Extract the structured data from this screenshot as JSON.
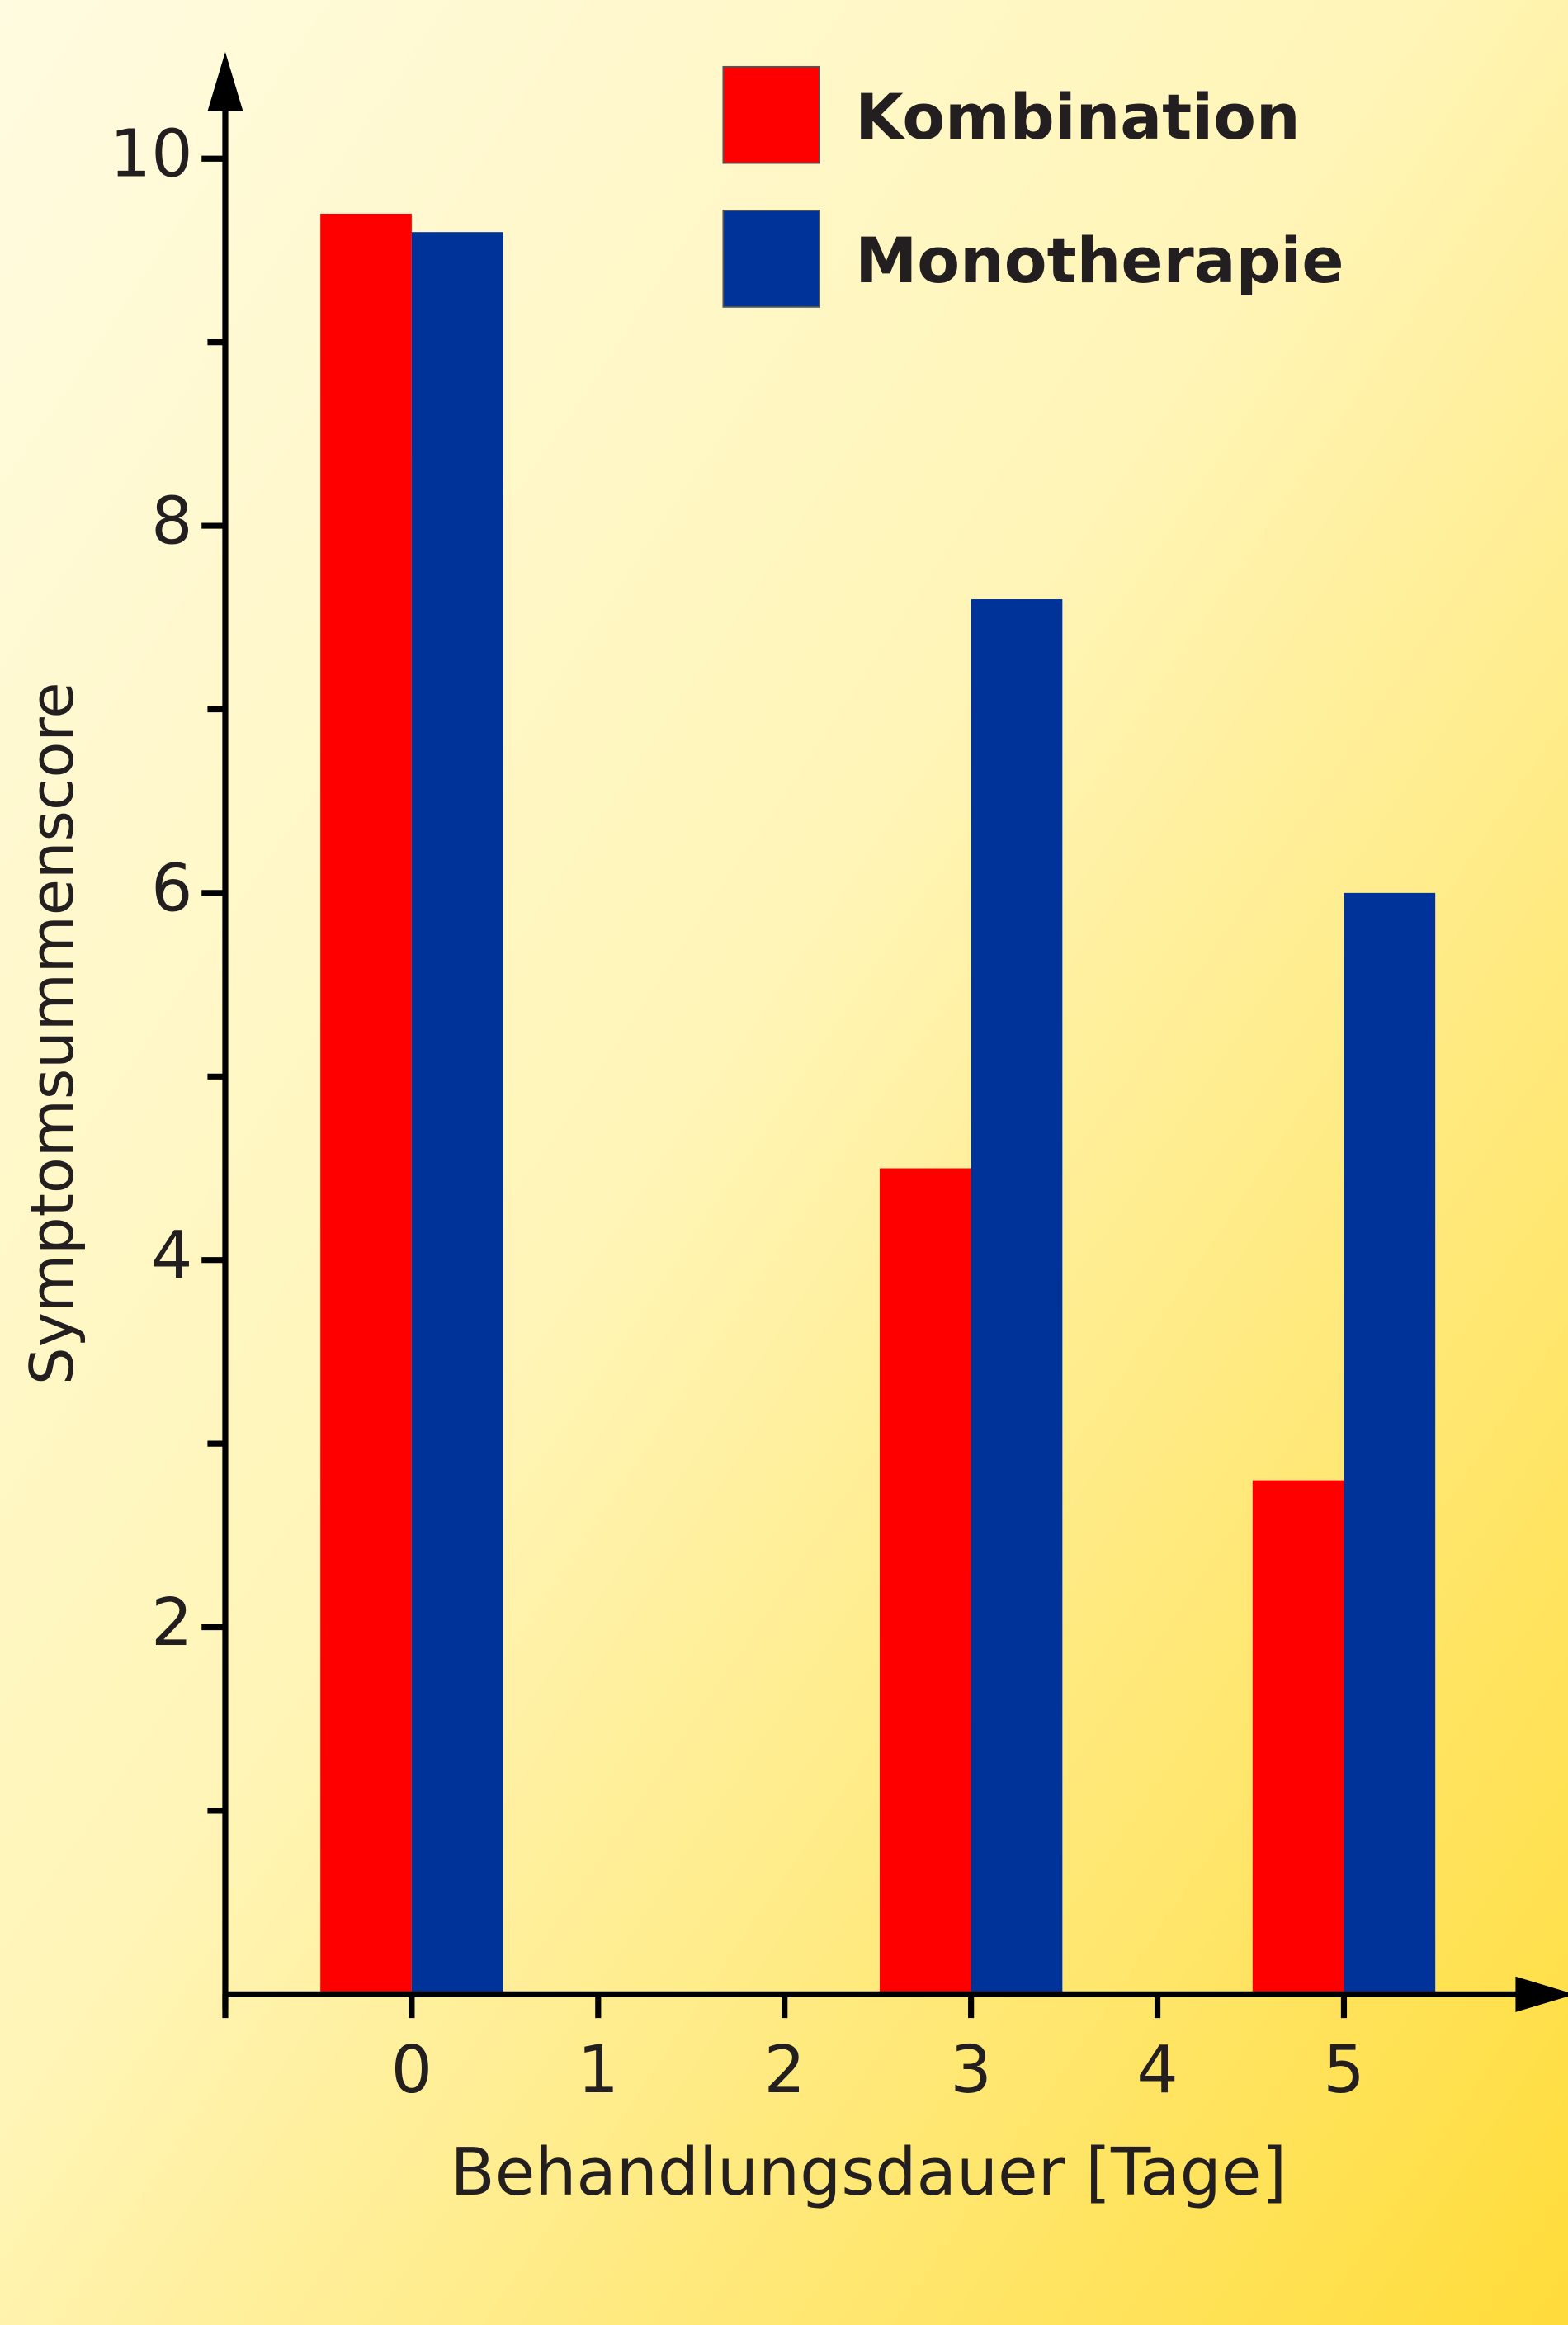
{
  "chart_data": {
    "type": "bar",
    "x": [
      0,
      3,
      5
    ],
    "series": [
      {
        "name": "Kombination",
        "color": "#ff0000",
        "values": [
          9.7,
          4.5,
          2.8
        ]
      },
      {
        "name": "Monotherapie",
        "color": "#003399",
        "values": [
          9.6,
          7.6,
          6.0
        ]
      }
    ],
    "x_label": "Behandlungsdauer [Tage]",
    "y_label": "Symptomsummenscore",
    "xlim": [
      -1,
      6
    ],
    "xticks": [
      0,
      1,
      2,
      3,
      4,
      5
    ],
    "ylim": [
      0,
      10.5
    ],
    "yticks": [
      2,
      4,
      6,
      8,
      10
    ],
    "yminorticks": [
      1,
      3,
      5,
      7,
      9
    ],
    "legend": "top-right",
    "grid": false
  }
}
